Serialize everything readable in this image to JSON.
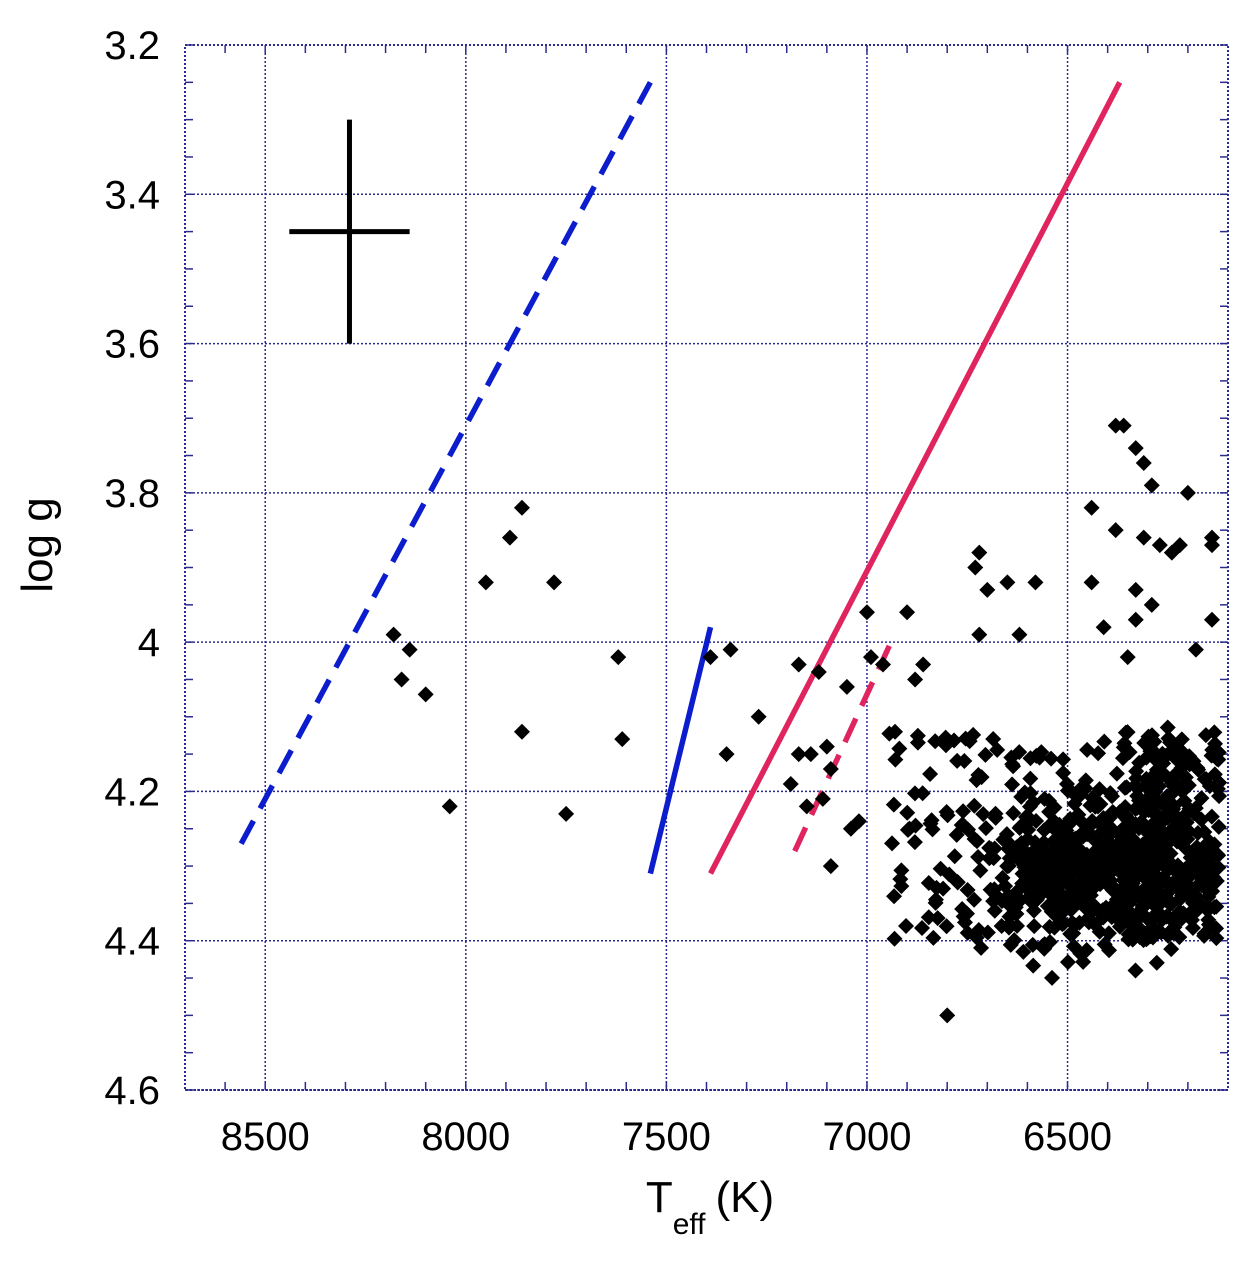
{
  "chart_data": {
    "type": "scatter",
    "x_axis": {
      "label_main": "T",
      "label_sub": "eff",
      "label_unit": "(K)",
      "lim": [
        8700,
        6100
      ],
      "reversed": true,
      "ticks": [
        8500,
        8000,
        7500,
        7000,
        6500
      ],
      "tick_labels": [
        "8500",
        "8000",
        "7500",
        "7000",
        "6500"
      ]
    },
    "y_axis": {
      "label": "log g",
      "lim": [
        3.2,
        4.6
      ],
      "reversed": true,
      "ticks": [
        3.2,
        3.4,
        3.6,
        3.8,
        4.0,
        4.2,
        4.4,
        4.6
      ],
      "tick_labels": [
        "3.2",
        "3.4",
        "3.6",
        "3.8",
        "4",
        "4.2",
        "4.4",
        "4.6"
      ]
    },
    "grid": true,
    "grid_color": "#2b2b8f",
    "colors": {
      "blue": "#0b1dcc",
      "red": "#e0245e",
      "points": "#000000",
      "errorbar": "#000000"
    },
    "error_bar": {
      "x": 8290,
      "y": 3.45,
      "x_err": 150,
      "y_err": 0.15
    },
    "lines": [
      {
        "x": [
          8560,
          7540
        ],
        "y": [
          4.27,
          3.25
        ],
        "color": "#0b1dcc",
        "style": "dashed"
      },
      {
        "x": [
          7540,
          7390
        ],
        "y": [
          4.31,
          3.98
        ],
        "color": "#0b1dcc",
        "style": "solid"
      },
      {
        "x": [
          7390,
          6370
        ],
        "y": [
          4.31,
          3.25
        ],
        "color": "#e0245e",
        "style": "solid"
      },
      {
        "x": [
          7180,
          6940
        ],
        "y": [
          4.28,
          4.0
        ],
        "color": "#e0245e",
        "style": "dashed"
      }
    ],
    "isolated_points": [
      [
        8180,
        3.99
      ],
      [
        8140,
        4.01
      ],
      [
        8160,
        4.05
      ],
      [
        8100,
        4.07
      ],
      [
        7950,
        3.92
      ],
      [
        7890,
        3.86
      ],
      [
        7860,
        3.82
      ],
      [
        7780,
        3.92
      ],
      [
        7860,
        4.12
      ],
      [
        7750,
        4.23
      ],
      [
        8040,
        4.22
      ],
      [
        7620,
        4.02
      ],
      [
        7610,
        4.13
      ],
      [
        7390,
        4.02
      ],
      [
        7340,
        4.01
      ],
      [
        7350,
        4.15
      ],
      [
        7270,
        4.1
      ],
      [
        7170,
        4.03
      ],
      [
        7170,
        4.15
      ],
      [
        7190,
        4.19
      ],
      [
        7140,
        4.15
      ],
      [
        7150,
        4.22
      ],
      [
        7120,
        4.04
      ],
      [
        7100,
        4.14
      ],
      [
        7090,
        4.17
      ],
      [
        7110,
        4.21
      ],
      [
        7090,
        4.3
      ],
      [
        7050,
        4.06
      ],
      [
        7040,
        4.25
      ],
      [
        7020,
        4.24
      ],
      [
        7000,
        3.96
      ],
      [
        6990,
        4.02
      ],
      [
        6960,
        4.03
      ],
      [
        6930,
        4.12
      ],
      [
        6900,
        3.96
      ],
      [
        6880,
        4.05
      ],
      [
        6860,
        4.03
      ],
      [
        6800,
        4.5
      ],
      [
        6720,
        3.88
      ],
      [
        6730,
        3.9
      ],
      [
        6700,
        3.93
      ],
      [
        6650,
        3.92
      ],
      [
        6580,
        3.92
      ],
      [
        6620,
        3.99
      ],
      [
        6720,
        3.99
      ],
      [
        6440,
        3.82
      ],
      [
        6380,
        3.71
      ],
      [
        6360,
        3.71
      ],
      [
        6330,
        3.74
      ],
      [
        6310,
        3.76
      ],
      [
        6290,
        3.79
      ],
      [
        6200,
        3.8
      ],
      [
        6140,
        3.86
      ],
      [
        6140,
        3.87
      ],
      [
        6220,
        3.87
      ],
      [
        6240,
        3.88
      ],
      [
        6270,
        3.87
      ],
      [
        6310,
        3.86
      ],
      [
        6380,
        3.85
      ],
      [
        6440,
        3.92
      ],
      [
        6330,
        3.93
      ],
      [
        6330,
        3.97
      ],
      [
        6290,
        3.95
      ],
      [
        6350,
        4.02
      ],
      [
        6410,
        3.98
      ],
      [
        6140,
        3.97
      ],
      [
        6180,
        4.01
      ]
    ],
    "cluster": {
      "description_count": 900,
      "x_range": [
        6120,
        6950
      ],
      "y_range": [
        4.1,
        4.46
      ],
      "center": [
        6420,
        4.3
      ]
    }
  }
}
